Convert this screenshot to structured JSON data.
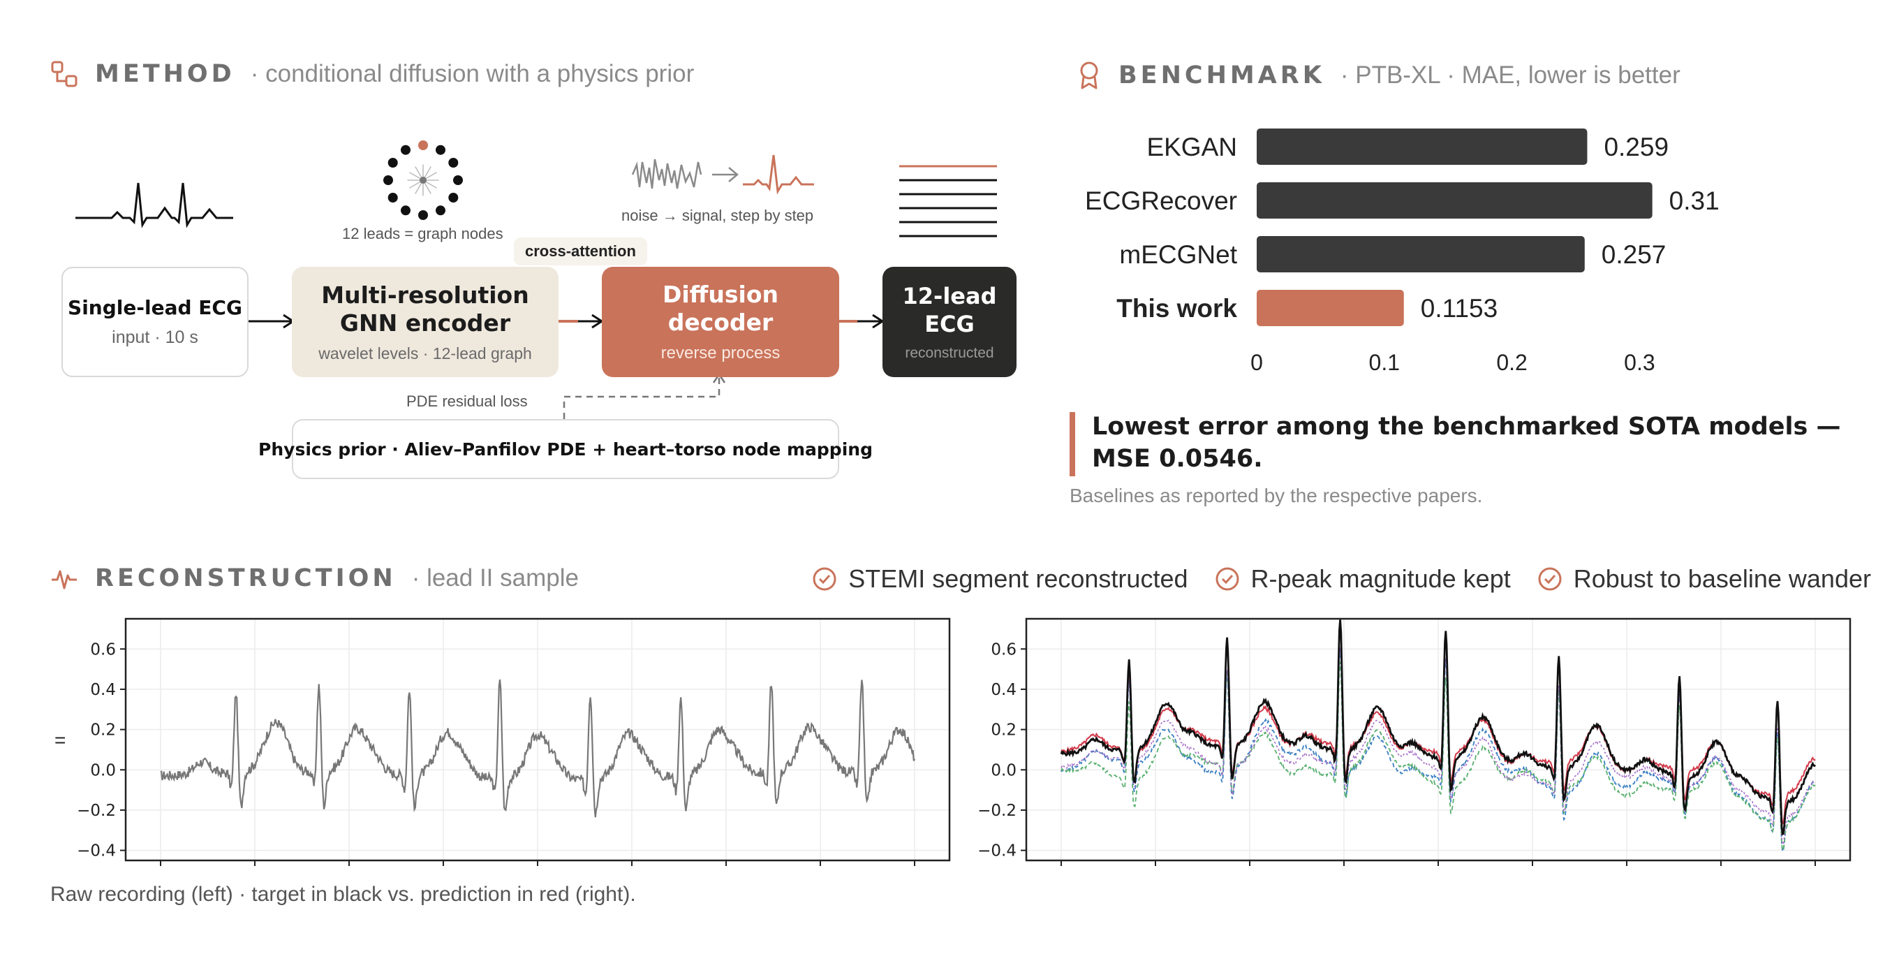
{
  "method": {
    "title": "METHOD",
    "subtitle": "· conditional diffusion with a physics prior",
    "labels": {
      "graph_nodes": "12 leads = graph nodes",
      "noise_signal": "noise → signal, step by step",
      "cross_attention": "cross-attention",
      "pde_loss": "PDE residual loss"
    },
    "nodes": {
      "input": {
        "title": "Single-lead ECG",
        "sub": "input · 10 s"
      },
      "encoder": {
        "title1": "Multi-resolution",
        "title2": "GNN encoder",
        "sub": "wavelet levels · 12-lead graph"
      },
      "decoder": {
        "title1": "Diffusion",
        "title2": "decoder",
        "sub": "reverse process"
      },
      "output": {
        "title1": "12-lead",
        "title2": "ECG",
        "sub": "reconstructed"
      },
      "physics": {
        "title": "Physics prior · Aliev–Panfilov PDE + heart–torso node mapping"
      }
    }
  },
  "benchmark": {
    "title": "BENCHMARK",
    "subtitle": "· PTB-XL · MAE, lower is better",
    "chart_data": {
      "type": "bar",
      "orientation": "horizontal",
      "categories": [
        "EKGAN",
        "ECGRecover",
        "mECGNet",
        "This work"
      ],
      "values": [
        0.259,
        0.31,
        0.257,
        0.1153
      ],
      "value_labels": [
        "0.259",
        "0.31",
        "0.257",
        "0.1153"
      ],
      "xticks": [
        "0",
        "0.1",
        "0.2",
        "0.3"
      ],
      "xlim": [
        0,
        0.36
      ],
      "colors": [
        "#3a3a3a",
        "#3a3a3a",
        "#3a3a3a",
        "#c9735a"
      ],
      "highlight": "This work"
    },
    "callout": "Lowest error among the benchmarked SOTA models — MSE 0.0546.",
    "footnote": "Baselines as reported by the respective papers."
  },
  "reconstruction": {
    "title": "RECONSTRUCTION",
    "subtitle": "· lead II sample",
    "checks": [
      "STEMI segment reconstructed",
      "R-peak magnitude kept",
      "Robust to baseline wander"
    ],
    "caption": "Raw recording (left) · target in black vs. prediction in red (right).",
    "left_axis_label": "=",
    "chart_data": [
      {
        "type": "line",
        "name": "raw",
        "yticks": [
          "0.6",
          "0.4",
          "0.2",
          "0.0",
          "−0.2",
          "−0.4"
        ],
        "ylim": [
          -0.45,
          0.75
        ],
        "r_peaks_t": [
          0.1,
          0.21,
          0.33,
          0.45,
          0.57,
          0.69,
          0.81,
          0.93
        ],
        "r_heights": [
          0.44,
          0.47,
          0.47,
          0.53,
          0.47,
          0.43,
          0.49,
          0.5
        ],
        "series_colors": [
          "#777777"
        ]
      },
      {
        "type": "line",
        "yticks": [
          "0.6",
          "0.4",
          "0.2",
          "0.0",
          "−0.2",
          "−0.4"
        ],
        "ylim": [
          -0.45,
          0.75
        ],
        "r_peaks_t": [
          0.09,
          0.22,
          0.37,
          0.51,
          0.66,
          0.82,
          0.95
        ],
        "r_heights": [
          0.48,
          0.58,
          0.68,
          0.68,
          0.59,
          0.53,
          0.54
        ],
        "series_colors": [
          "#111111",
          "#d23a4a",
          "#3a7fc1",
          "#5ab070",
          "#a46cc8"
        ]
      }
    ]
  },
  "colors": {
    "accent": "#c9735a",
    "dark": "#2a2a2a",
    "beige": "#efe8dd"
  }
}
